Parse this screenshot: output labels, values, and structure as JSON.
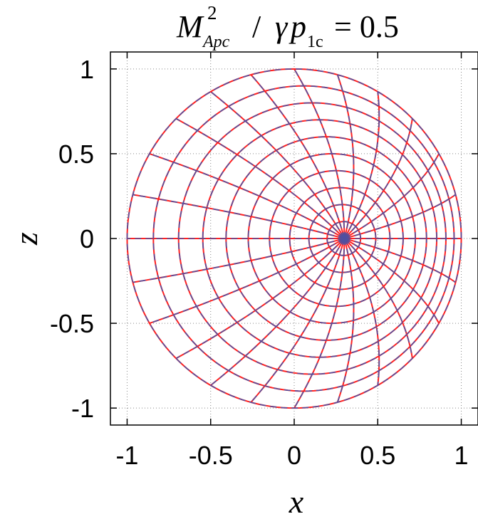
{
  "chart_data": {
    "type": "line",
    "title": {
      "M": "M",
      "sup": "2",
      "sub": "Apc",
      "slash": " / ",
      "gamma": "γ",
      "p": "p",
      "p_sub": "1c",
      "rhs": " = 0.5"
    },
    "xlabel": "x",
    "ylabel": "z",
    "xlim": [
      -1.1,
      1.1
    ],
    "ylim": [
      -1.1,
      1.1
    ],
    "x_ticks": [
      -1,
      -0.5,
      0,
      0.5,
      1
    ],
    "x_tick_labels": [
      "-1",
      "-0.5",
      "0",
      "0.5",
      "1"
    ],
    "y_ticks": [
      -1,
      -0.5,
      0,
      0.5,
      1
    ],
    "y_tick_labels": [
      "-1",
      "-0.5",
      "0",
      "0.5",
      "1"
    ],
    "grid": true,
    "magnetic_axis": {
      "x": 0.3,
      "z": 0.0
    },
    "boundary_radius": 1.0,
    "num_flux_surfaces": 10,
    "num_rays": 24,
    "series": [
      {
        "color": "#ff2020",
        "style": "solid"
      },
      {
        "color": "#5050a0",
        "style": "dashed"
      }
    ]
  }
}
